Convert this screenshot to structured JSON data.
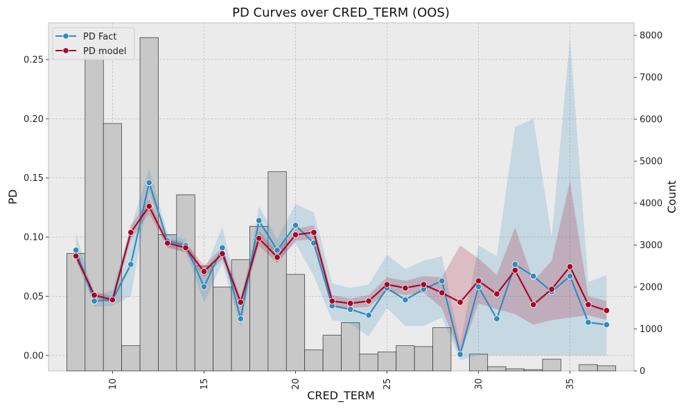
{
  "chart_data": {
    "type": "line",
    "title": "PD Curves over CRED_TERM (OOS)",
    "xlabel": "CRED_TERM",
    "ylabel": "PD",
    "y2label": "Count",
    "xlim": [
      6.5,
      38.5
    ],
    "ylim": [
      -0.013,
      0.281
    ],
    "y2lim": [
      0,
      8300
    ],
    "xticks": [
      10,
      15,
      20,
      25,
      30,
      35
    ],
    "yticks": [
      0.0,
      0.05,
      0.1,
      0.15,
      0.2,
      0.25
    ],
    "yticklabels": [
      "0.00",
      "0.05",
      "0.10",
      "0.15",
      "0.20",
      "0.25"
    ],
    "y2ticks": [
      0,
      1000,
      2000,
      3000,
      4000,
      5000,
      6000,
      7000,
      8000
    ],
    "grid": true,
    "legend_position": "top-left",
    "x": [
      8,
      9,
      10,
      11,
      12,
      13,
      14,
      15,
      16,
      17,
      18,
      19,
      20,
      21,
      22,
      23,
      24,
      25,
      26,
      27,
      28,
      29,
      30,
      31,
      32,
      33,
      34,
      35,
      36,
      37
    ],
    "series": [
      {
        "name": "PD Fact",
        "color": "#348ABD",
        "values": [
          0.089,
          0.046,
          0.047,
          0.077,
          0.146,
          0.097,
          0.093,
          0.058,
          0.091,
          0.031,
          0.114,
          0.089,
          0.11,
          0.095,
          0.042,
          0.039,
          0.034,
          0.057,
          0.047,
          0.056,
          0.063,
          0.001,
          0.058,
          0.031,
          0.077,
          0.067,
          0.054,
          0.067,
          0.028,
          0.026
        ],
        "band_lower": [
          0.082,
          0.041,
          0.042,
          0.05,
          0.138,
          0.092,
          0.088,
          0.045,
          0.078,
          0.024,
          0.103,
          0.08,
          0.095,
          0.067,
          0.03,
          0.027,
          0.016,
          0.04,
          0.025,
          0.025,
          0.032,
          -0.004,
          0.0,
          0.0,
          0.0,
          0.0,
          0.0,
          0.0,
          0.0,
          0.0
        ],
        "band_upper": [
          0.103,
          0.051,
          0.055,
          0.108,
          0.158,
          0.103,
          0.098,
          0.07,
          0.109,
          0.042,
          0.126,
          0.098,
          0.128,
          0.121,
          0.061,
          0.057,
          0.06,
          0.085,
          0.073,
          0.08,
          0.084,
          0.009,
          0.093,
          0.084,
          0.193,
          0.2,
          0.1,
          0.268,
          0.062,
          0.068
        ]
      },
      {
        "name": "PD model",
        "color": "#A60628",
        "values": [
          0.084,
          0.051,
          0.047,
          0.104,
          0.126,
          0.095,
          0.091,
          0.071,
          0.086,
          0.045,
          0.099,
          0.083,
          0.102,
          0.104,
          0.046,
          0.044,
          0.046,
          0.06,
          0.057,
          0.06,
          0.053,
          0.045,
          0.063,
          0.052,
          0.072,
          0.043,
          0.056,
          0.075,
          0.043,
          0.038
        ],
        "band_lower": [
          0.08,
          0.049,
          0.044,
          0.098,
          0.12,
          0.091,
          0.087,
          0.066,
          0.081,
          0.041,
          0.093,
          0.078,
          0.097,
          0.098,
          0.041,
          0.04,
          0.041,
          0.054,
          0.051,
          0.053,
          0.04,
          0.0,
          0.044,
          0.039,
          0.035,
          0.026,
          0.03,
          0.032,
          0.034,
          0.03
        ],
        "band_upper": [
          0.088,
          0.054,
          0.05,
          0.11,
          0.132,
          0.099,
          0.095,
          0.076,
          0.091,
          0.049,
          0.105,
          0.088,
          0.107,
          0.11,
          0.051,
          0.048,
          0.051,
          0.066,
          0.063,
          0.067,
          0.066,
          0.093,
          0.082,
          0.068,
          0.108,
          0.063,
          0.08,
          0.147,
          0.05,
          0.046
        ]
      }
    ],
    "histogram": {
      "name": "Count",
      "color": "#C8C8C8",
      "bins": [
        8,
        9,
        10,
        11,
        12,
        13,
        14,
        15,
        16,
        17,
        18,
        19,
        20,
        21,
        22,
        23,
        24,
        25,
        26,
        27,
        28,
        29,
        30,
        31,
        32,
        33,
        34,
        35,
        36,
        37
      ],
      "counts": [
        2800,
        7650,
        5900,
        600,
        7950,
        3250,
        4200,
        2500,
        2000,
        2650,
        3450,
        4750,
        2300,
        500,
        850,
        1150,
        400,
        450,
        600,
        580,
        1030,
        0,
        400,
        100,
        50,
        30,
        280,
        0,
        150,
        120
      ]
    }
  }
}
